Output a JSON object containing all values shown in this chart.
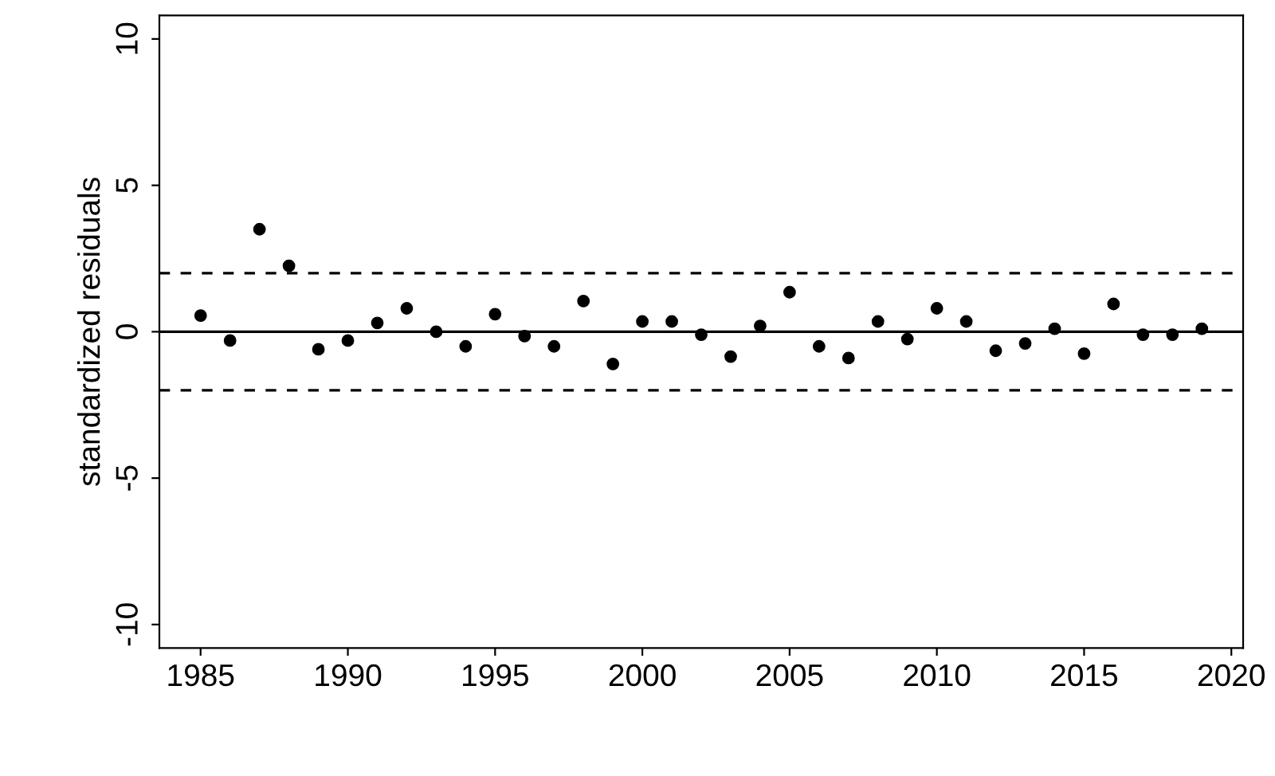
{
  "chart_data": {
    "type": "scatter",
    "ylabel": "standardized residuals",
    "x": [
      1985,
      1986,
      1987,
      1988,
      1989,
      1990,
      1991,
      1992,
      1993,
      1994,
      1995,
      1996,
      1997,
      1998,
      1999,
      2000,
      2001,
      2002,
      2003,
      2004,
      2005,
      2006,
      2007,
      2008,
      2009,
      2010,
      2011,
      2012,
      2013,
      2014,
      2015,
      2016,
      2017,
      2018,
      2019
    ],
    "series": [
      {
        "color": "#000000",
        "values": [
          0.55,
          -0.3,
          3.5,
          2.25,
          -0.6,
          -0.3,
          0.3,
          0.8,
          0.0,
          -0.5,
          0.6,
          -0.15,
          -0.5,
          1.05,
          -1.1,
          0.35,
          0.35,
          -0.1,
          -0.85,
          0.2,
          1.35,
          -0.5,
          -0.9,
          0.35,
          -0.25,
          0.8,
          0.35,
          -0.65,
          -0.4,
          0.1,
          -0.75,
          0.95,
          -0.1,
          -0.1,
          0.1
        ]
      }
    ],
    "xlim": [
      1983.6,
      2020.4
    ],
    "ylim": [
      -10.8,
      10.8
    ],
    "xticks": [
      1985,
      1990,
      1995,
      2000,
      2005,
      2010,
      2015,
      2020
    ],
    "yticks": [
      -10,
      -5,
      0,
      5,
      10
    ],
    "marker": "circle",
    "grid": false,
    "ref_lines": [
      {
        "axis": "y",
        "value": 2,
        "line_style": "dashed",
        "color": "#000000"
      },
      {
        "axis": "y",
        "value": 0,
        "line_style": "solid",
        "color": "#000000"
      },
      {
        "axis": "y",
        "value": -2,
        "line_style": "dashed",
        "color": "#000000"
      }
    ]
  }
}
